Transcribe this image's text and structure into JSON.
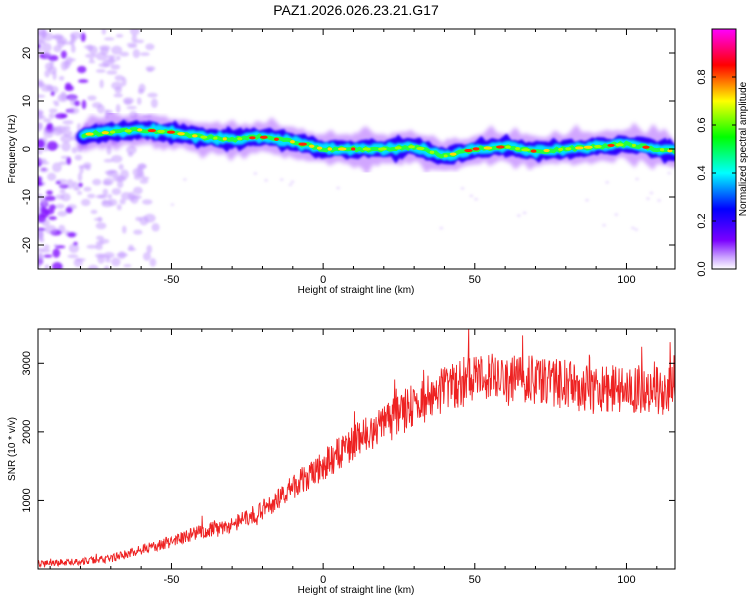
{
  "title": "PAZ1.2026.026.23.21.G17",
  "chart_data": [
    {
      "type": "heatmap",
      "title": "PAZ1.2026.026.23.21.G17",
      "xlabel": "Height of straight line (km)",
      "ylabel": "Frequency (Hz)",
      "xlim": [
        -94,
        116
      ],
      "ylim": [
        -25,
        25
      ],
      "xticks": [
        -50,
        0,
        50,
        100
      ],
      "yticks": [
        -20,
        -10,
        0,
        10,
        20
      ],
      "colorbar": {
        "label": "Normalized spectral amplitude",
        "range": [
          0,
          1
        ],
        "ticks": [
          0.0,
          0.2,
          0.4,
          0.6,
          0.8
        ],
        "tick_labels": [
          "0.0",
          "0.2",
          "0.4",
          "0.6",
          "0.8"
        ],
        "colormap": [
          "#ffffff",
          "#7a00ff",
          "#0000ff",
          "#00ffff",
          "#00ff00",
          "#ffff00",
          "#ff0000",
          "#ff00ff"
        ]
      },
      "ridge": {
        "x": [
          -79,
          -70,
          -60,
          -50,
          -40,
          -30,
          -20,
          -10,
          0,
          10,
          20,
          30,
          40,
          50,
          60,
          70,
          80,
          90,
          100,
          110,
          116
        ],
        "y": [
          3,
          3.5,
          4,
          3.5,
          2.5,
          2,
          2.5,
          1.5,
          0,
          0,
          0,
          0.5,
          -1.5,
          0,
          0.5,
          -0.5,
          0,
          0.5,
          1,
          0,
          -0.5
        ]
      },
      "noise_region_x": [
        -94,
        -55
      ]
    },
    {
      "type": "line",
      "xlabel": "Height of straight line (km)",
      "ylabel": "SNR (10 * v/v)",
      "xlim": [
        -94,
        116
      ],
      "ylim": [
        0,
        3500
      ],
      "xticks": [
        -50,
        0,
        50,
        100
      ],
      "yticks": [
        1000,
        2000,
        3000
      ],
      "color": "#ee2222",
      "trend": {
        "x": [
          -94,
          -80,
          -70,
          -60,
          -50,
          -40,
          -30,
          -20,
          -10,
          0,
          10,
          20,
          30,
          40,
          50,
          60,
          70,
          80,
          90,
          100,
          110,
          116
        ],
        "y": [
          80,
          110,
          150,
          280,
          400,
          550,
          650,
          850,
          1200,
          1500,
          1850,
          2100,
          2400,
          2600,
          2800,
          2750,
          2750,
          2700,
          2600,
          2650,
          2600,
          2600
        ]
      }
    }
  ]
}
